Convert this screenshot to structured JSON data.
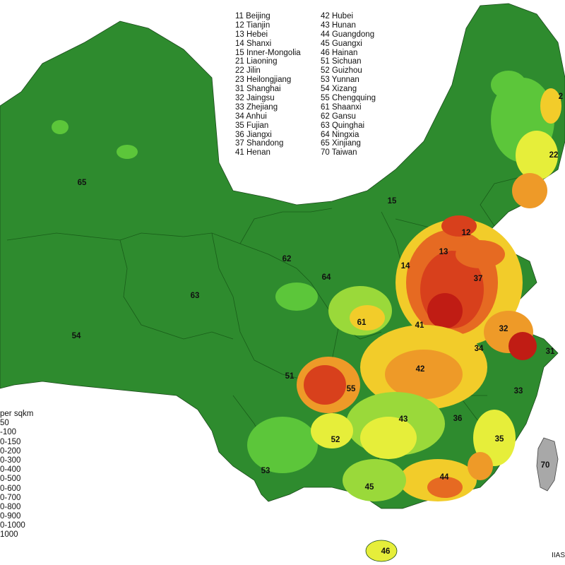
{
  "province_codes_col1": [
    "11 Beijing",
    "12 Tianjin",
    "13 Hebei",
    "14 Shanxi",
    "15 Inner-Mongolia",
    "21 Liaoning",
    "22 Jilin",
    "23 Heilongjiang",
    "31 Shanghai",
    "32 Jaingsu",
    "33 Zhejiang",
    "34 Anhui",
    "35 Fujian",
    "36 Jiangxi",
    "37 Shandong",
    "41 Henan"
  ],
  "province_codes_col2": [
    "42 Hubei",
    "43 Hunan",
    "44 Guangdong",
    "45 Guangxi",
    "46 Hainan",
    "51 Sichuan",
    "52 Guizhou",
    "53 Yunnan",
    "54 Xizang",
    "55 Chengquing",
    "61 Shaanxi",
    "62 Gansu",
    "63 Quinghai",
    "64 Ningxia",
    "65 Xinjiang",
    "70 Taiwan"
  ],
  "map_labels": [
    {
      "code": "65"
    },
    {
      "code": "54"
    },
    {
      "code": "63"
    },
    {
      "code": "62"
    },
    {
      "code": "64"
    },
    {
      "code": "15"
    },
    {
      "code": "14"
    },
    {
      "code": "13"
    },
    {
      "code": "12"
    },
    {
      "code": "37"
    },
    {
      "code": "41"
    },
    {
      "code": "61"
    },
    {
      "code": "32"
    },
    {
      "code": "34"
    },
    {
      "code": "31"
    },
    {
      "code": "42"
    },
    {
      "code": "51"
    },
    {
      "code": "55"
    },
    {
      "code": "33"
    },
    {
      "code": "36"
    },
    {
      "code": "43"
    },
    {
      "code": "52"
    },
    {
      "code": "35"
    },
    {
      "code": "53"
    },
    {
      "code": "70"
    },
    {
      "code": "44"
    },
    {
      "code": "45"
    },
    {
      "code": "46"
    },
    {
      "code": "22"
    },
    {
      "code": "2"
    }
  ],
  "legend": {
    "title": "per sqkm",
    "items": [
      {
        "label": "50",
        "color": "#1f8a1f"
      },
      {
        "label": "-100",
        "color": "#2fa82f"
      },
      {
        "label": "0-150",
        "color": "#5cc63a"
      },
      {
        "label": "0-200",
        "color": "#9ad93a"
      },
      {
        "label": "0-300",
        "color": "#e6ee3a"
      },
      {
        "label": "0-400",
        "color": "#f2cc2a"
      },
      {
        "label": "0-500",
        "color": "#ee9a28"
      },
      {
        "label": "0-600",
        "color": "#e66a22"
      },
      {
        "label": "0-700",
        "color": "#d8401c"
      },
      {
        "label": "0-800",
        "color": "#c01c14"
      },
      {
        "label": "0-900",
        "color": "#901010"
      },
      {
        "label": "0-1000",
        "color": "#5a0a0a"
      },
      {
        "label": "1000",
        "color": "#2a0505"
      }
    ]
  },
  "colors": {
    "land_base": "#2e8b2e",
    "ocean": "#ffffff",
    "taiwan": "#a8a8a8"
  },
  "credit": "IIAS"
}
